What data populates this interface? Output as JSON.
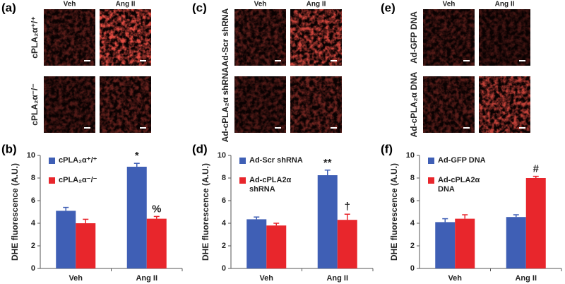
{
  "image_panels": [
    {
      "label": "(a)",
      "columns": [
        "Veh",
        "Ang II"
      ],
      "rows": [
        "cPLA₂α⁺/⁺",
        "cPLA₂α⁻/⁻"
      ]
    },
    {
      "label": "(c)",
      "columns": [
        "Veh",
        "Ang II"
      ],
      "rows": [
        "Ad-Scr shRNA",
        "Ad-cPLA₂α shRNA"
      ]
    },
    {
      "label": "(e)",
      "columns": [
        "Veh",
        "Ang II"
      ],
      "rows": [
        "Ad-GFP DNA",
        "Ad-cPLA₂α DNA"
      ]
    }
  ],
  "chart_data": [
    {
      "type": "bar",
      "panel_label": "(b)",
      "y_label": "DHE fluorescence (A.U.)",
      "categories": [
        "Veh",
        "Ang II"
      ],
      "ylim": [
        0,
        10
      ],
      "yticks": [
        0,
        2,
        4,
        6,
        8,
        10
      ],
      "legend": "upper left",
      "series": [
        {
          "name": "cPLA₂α⁺/⁺",
          "color": "#3f5fb5",
          "values": [
            5.1,
            9.0
          ],
          "errors": [
            0.3,
            0.3
          ],
          "annotations": [
            null,
            "*"
          ]
        },
        {
          "name": "cPLA₂α⁻/⁻",
          "color": "#e8262c",
          "values": [
            4.0,
            4.4
          ],
          "errors": [
            0.35,
            0.2
          ],
          "annotations": [
            null,
            "%"
          ]
        }
      ]
    },
    {
      "type": "bar",
      "panel_label": "(d)",
      "y_label": "DHE fluorescence (A.U.)",
      "categories": [
        "Veh",
        "Ang II"
      ],
      "ylim": [
        0,
        10
      ],
      "yticks": [
        0,
        2,
        4,
        6,
        8,
        10
      ],
      "legend": "upper left",
      "series": [
        {
          "name": "Ad-Scr shRNA",
          "color": "#3f5fb5",
          "values": [
            4.35,
            8.25
          ],
          "errors": [
            0.2,
            0.45
          ],
          "annotations": [
            null,
            "**"
          ]
        },
        {
          "name": "Ad-cPLA2α shRNA",
          "color": "#e8262c",
          "values": [
            3.8,
            4.3
          ],
          "errors": [
            0.2,
            0.5
          ],
          "annotations": [
            null,
            "†"
          ]
        }
      ]
    },
    {
      "type": "bar",
      "panel_label": "(f)",
      "y_label": "DHE fluorescence (A.U.)",
      "categories": [
        "Veh",
        "Ang II"
      ],
      "ylim": [
        0,
        10
      ],
      "yticks": [
        0,
        2,
        4,
        6,
        8,
        10
      ],
      "legend": "upper left",
      "series": [
        {
          "name": "Ad-GFP DNA",
          "color": "#3f5fb5",
          "values": [
            4.1,
            4.55
          ],
          "errors": [
            0.3,
            0.2
          ],
          "annotations": [
            null,
            null
          ]
        },
        {
          "name": "Ad-cPLA2α DNA",
          "color": "#e8262c",
          "values": [
            4.4,
            8.0
          ],
          "errors": [
            0.35,
            0.15
          ],
          "annotations": [
            null,
            "#"
          ]
        }
      ]
    }
  ]
}
